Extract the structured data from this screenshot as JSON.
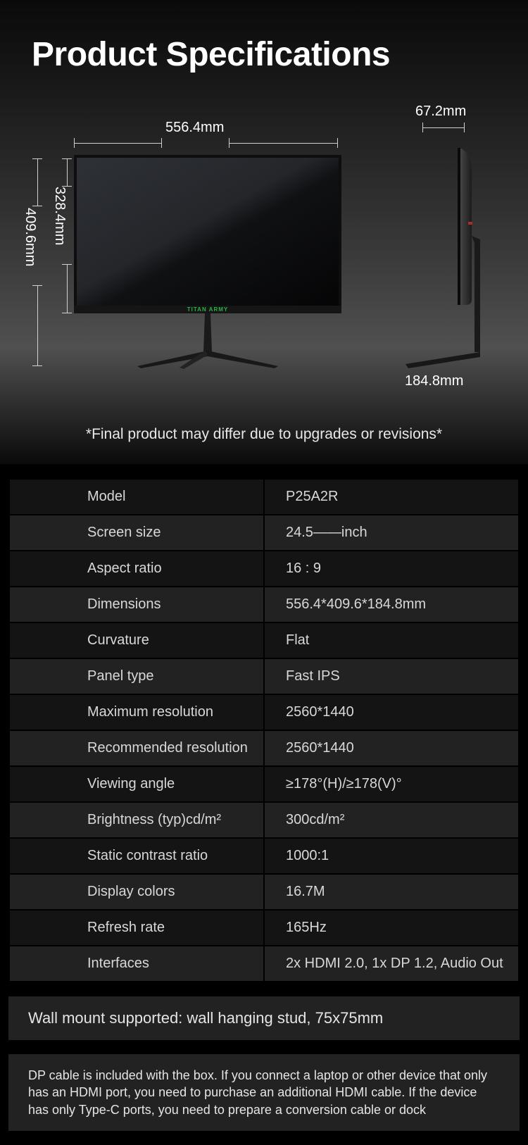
{
  "title": "Product Specifications",
  "dimensions": {
    "width_label": "556.4mm",
    "depth_label": "67.2mm",
    "screen_height_label": "328.4mm",
    "total_height_label": "409.6mm",
    "base_width_label": "184.8mm"
  },
  "monitor": {
    "brand_text": "TITAN ARMY",
    "brand_color": "#2bb04a",
    "front": {
      "panel_fill_dark": "#0b0b0d",
      "panel_fill_light": "#2c2f33",
      "bezel_color": "#151515",
      "stand_color": "#1a1a1a"
    },
    "side": {
      "body_color": "#1c1c1c",
      "body_light": "#4a4a4a",
      "accent_color": "#b02a2a"
    }
  },
  "disclaimer": "*Final product may differ due to upgrades or revisions*",
  "specs": [
    {
      "label": "Model",
      "value": "P25A2R"
    },
    {
      "label": "Screen size",
      "value": "24.5——inch"
    },
    {
      "label": "Aspect ratio",
      "value": "16 : 9"
    },
    {
      "label": "Dimensions",
      "value": "556.4*409.6*184.8mm"
    },
    {
      "label": "Curvature",
      "value": "Flat"
    },
    {
      "label": "Panel type",
      "value": "Fast IPS"
    },
    {
      "label": "Maximum resolution",
      "value": "2560*1440"
    },
    {
      "label": "Recommended resolution",
      "value": "2560*1440"
    },
    {
      "label": "Viewing angle",
      "value": "≥178°(H)/≥178(V)°"
    },
    {
      "label": "Brightness (typ)cd/m²",
      "value": "300cd/m²"
    },
    {
      "label": "Static contrast ratio",
      "value": "1000:1"
    },
    {
      "label": "Display colors",
      "value": "16.7M"
    },
    {
      "label": "Refresh rate",
      "value": "165Hz"
    },
    {
      "label": "Interfaces",
      "value": "2x HDMI 2.0, 1x DP 1.2, Audio Out"
    }
  ],
  "wall_mount": "Wall mount supported: wall hanging stud, 75x75mm",
  "note": "DP cable is included with the box. If you connect a laptop or other device that only has an HDMI port, you need to purchase an additional HDMI cable. If the device has only Type-C ports, you need to prepare a conversion cable or dock",
  "colors": {
    "row_odd": "#141414",
    "row_even": "#222222",
    "text": "#e5e5e5",
    "bg": "#000000"
  }
}
